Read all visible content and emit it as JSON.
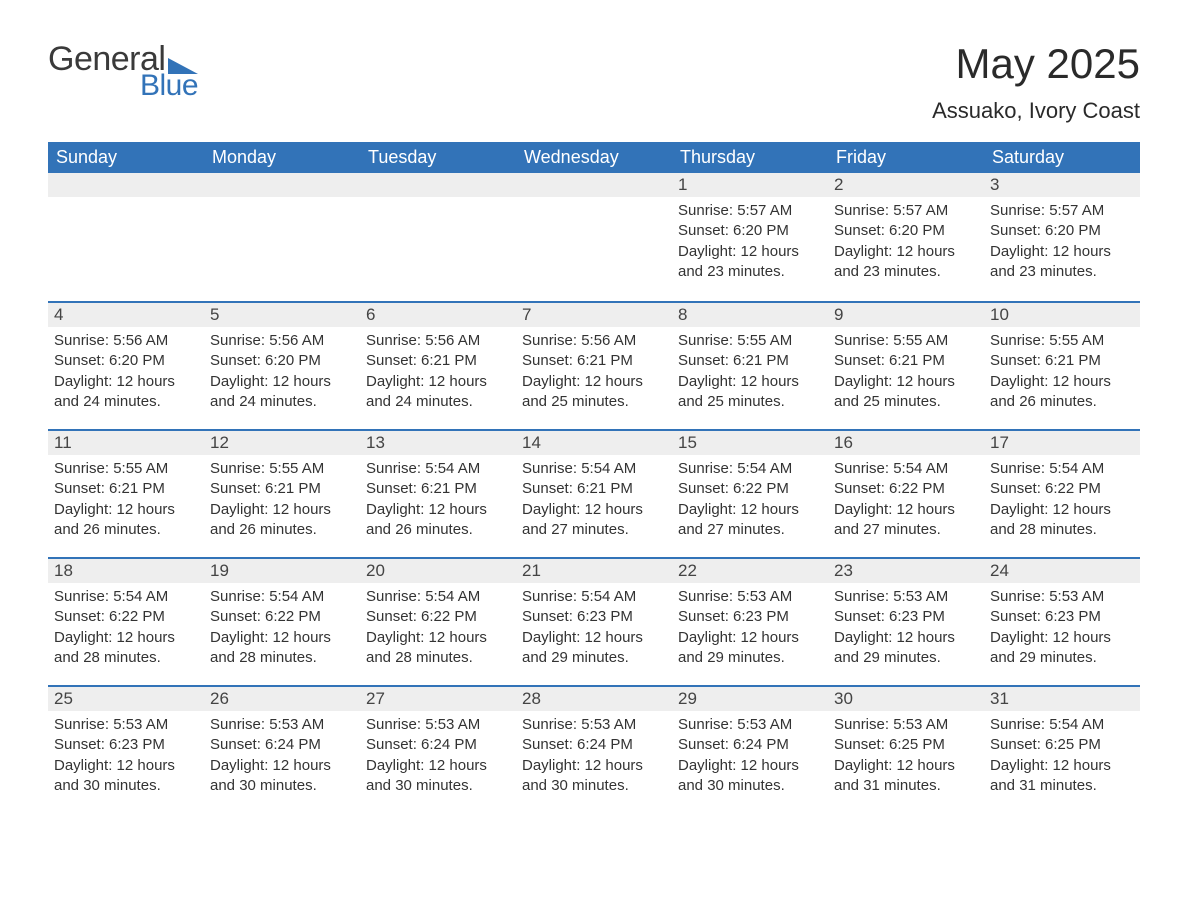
{
  "branding": {
    "logo_top": "General",
    "logo_bottom": "Blue",
    "logo_color": "#3273b8",
    "logo_text_color": "#3a3a3a"
  },
  "header": {
    "month_title": "May 2025",
    "location": "Assuako, Ivory Coast"
  },
  "colors": {
    "header_bg": "#3273b8",
    "header_text": "#ffffff",
    "daynum_bg": "#eeeeee",
    "row_border": "#3273b8",
    "text": "#333333",
    "background": "#ffffff"
  },
  "typography": {
    "month_title_fontsize": 42,
    "location_fontsize": 22,
    "weekday_fontsize": 18,
    "body_fontsize": 15
  },
  "calendar": {
    "type": "table",
    "columns": [
      "Sunday",
      "Monday",
      "Tuesday",
      "Wednesday",
      "Thursday",
      "Friday",
      "Saturday"
    ],
    "weeks": [
      [
        null,
        null,
        null,
        null,
        {
          "day": "1",
          "sunrise": "Sunrise: 5:57 AM",
          "sunset": "Sunset: 6:20 PM",
          "daylight": "Daylight: 12 hours and 23 minutes."
        },
        {
          "day": "2",
          "sunrise": "Sunrise: 5:57 AM",
          "sunset": "Sunset: 6:20 PM",
          "daylight": "Daylight: 12 hours and 23 minutes."
        },
        {
          "day": "3",
          "sunrise": "Sunrise: 5:57 AM",
          "sunset": "Sunset: 6:20 PM",
          "daylight": "Daylight: 12 hours and 23 minutes."
        }
      ],
      [
        {
          "day": "4",
          "sunrise": "Sunrise: 5:56 AM",
          "sunset": "Sunset: 6:20 PM",
          "daylight": "Daylight: 12 hours and 24 minutes."
        },
        {
          "day": "5",
          "sunrise": "Sunrise: 5:56 AM",
          "sunset": "Sunset: 6:20 PM",
          "daylight": "Daylight: 12 hours and 24 minutes."
        },
        {
          "day": "6",
          "sunrise": "Sunrise: 5:56 AM",
          "sunset": "Sunset: 6:21 PM",
          "daylight": "Daylight: 12 hours and 24 minutes."
        },
        {
          "day": "7",
          "sunrise": "Sunrise: 5:56 AM",
          "sunset": "Sunset: 6:21 PM",
          "daylight": "Daylight: 12 hours and 25 minutes."
        },
        {
          "day": "8",
          "sunrise": "Sunrise: 5:55 AM",
          "sunset": "Sunset: 6:21 PM",
          "daylight": "Daylight: 12 hours and 25 minutes."
        },
        {
          "day": "9",
          "sunrise": "Sunrise: 5:55 AM",
          "sunset": "Sunset: 6:21 PM",
          "daylight": "Daylight: 12 hours and 25 minutes."
        },
        {
          "day": "10",
          "sunrise": "Sunrise: 5:55 AM",
          "sunset": "Sunset: 6:21 PM",
          "daylight": "Daylight: 12 hours and 26 minutes."
        }
      ],
      [
        {
          "day": "11",
          "sunrise": "Sunrise: 5:55 AM",
          "sunset": "Sunset: 6:21 PM",
          "daylight": "Daylight: 12 hours and 26 minutes."
        },
        {
          "day": "12",
          "sunrise": "Sunrise: 5:55 AM",
          "sunset": "Sunset: 6:21 PM",
          "daylight": "Daylight: 12 hours and 26 minutes."
        },
        {
          "day": "13",
          "sunrise": "Sunrise: 5:54 AM",
          "sunset": "Sunset: 6:21 PM",
          "daylight": "Daylight: 12 hours and 26 minutes."
        },
        {
          "day": "14",
          "sunrise": "Sunrise: 5:54 AM",
          "sunset": "Sunset: 6:21 PM",
          "daylight": "Daylight: 12 hours and 27 minutes."
        },
        {
          "day": "15",
          "sunrise": "Sunrise: 5:54 AM",
          "sunset": "Sunset: 6:22 PM",
          "daylight": "Daylight: 12 hours and 27 minutes."
        },
        {
          "day": "16",
          "sunrise": "Sunrise: 5:54 AM",
          "sunset": "Sunset: 6:22 PM",
          "daylight": "Daylight: 12 hours and 27 minutes."
        },
        {
          "day": "17",
          "sunrise": "Sunrise: 5:54 AM",
          "sunset": "Sunset: 6:22 PM",
          "daylight": "Daylight: 12 hours and 28 minutes."
        }
      ],
      [
        {
          "day": "18",
          "sunrise": "Sunrise: 5:54 AM",
          "sunset": "Sunset: 6:22 PM",
          "daylight": "Daylight: 12 hours and 28 minutes."
        },
        {
          "day": "19",
          "sunrise": "Sunrise: 5:54 AM",
          "sunset": "Sunset: 6:22 PM",
          "daylight": "Daylight: 12 hours and 28 minutes."
        },
        {
          "day": "20",
          "sunrise": "Sunrise: 5:54 AM",
          "sunset": "Sunset: 6:22 PM",
          "daylight": "Daylight: 12 hours and 28 minutes."
        },
        {
          "day": "21",
          "sunrise": "Sunrise: 5:54 AM",
          "sunset": "Sunset: 6:23 PM",
          "daylight": "Daylight: 12 hours and 29 minutes."
        },
        {
          "day": "22",
          "sunrise": "Sunrise: 5:53 AM",
          "sunset": "Sunset: 6:23 PM",
          "daylight": "Daylight: 12 hours and 29 minutes."
        },
        {
          "day": "23",
          "sunrise": "Sunrise: 5:53 AM",
          "sunset": "Sunset: 6:23 PM",
          "daylight": "Daylight: 12 hours and 29 minutes."
        },
        {
          "day": "24",
          "sunrise": "Sunrise: 5:53 AM",
          "sunset": "Sunset: 6:23 PM",
          "daylight": "Daylight: 12 hours and 29 minutes."
        }
      ],
      [
        {
          "day": "25",
          "sunrise": "Sunrise: 5:53 AM",
          "sunset": "Sunset: 6:23 PM",
          "daylight": "Daylight: 12 hours and 30 minutes."
        },
        {
          "day": "26",
          "sunrise": "Sunrise: 5:53 AM",
          "sunset": "Sunset: 6:24 PM",
          "daylight": "Daylight: 12 hours and 30 minutes."
        },
        {
          "day": "27",
          "sunrise": "Sunrise: 5:53 AM",
          "sunset": "Sunset: 6:24 PM",
          "daylight": "Daylight: 12 hours and 30 minutes."
        },
        {
          "day": "28",
          "sunrise": "Sunrise: 5:53 AM",
          "sunset": "Sunset: 6:24 PM",
          "daylight": "Daylight: 12 hours and 30 minutes."
        },
        {
          "day": "29",
          "sunrise": "Sunrise: 5:53 AM",
          "sunset": "Sunset: 6:24 PM",
          "daylight": "Daylight: 12 hours and 30 minutes."
        },
        {
          "day": "30",
          "sunrise": "Sunrise: 5:53 AM",
          "sunset": "Sunset: 6:25 PM",
          "daylight": "Daylight: 12 hours and 31 minutes."
        },
        {
          "day": "31",
          "sunrise": "Sunrise: 5:54 AM",
          "sunset": "Sunset: 6:25 PM",
          "daylight": "Daylight: 12 hours and 31 minutes."
        }
      ]
    ]
  }
}
